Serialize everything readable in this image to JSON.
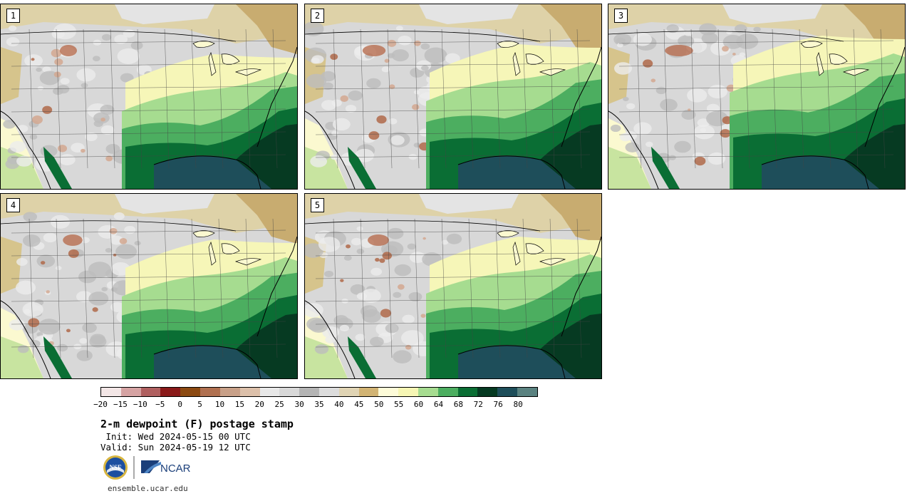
{
  "panels": [
    {
      "label": "1",
      "humid_north": 0
    },
    {
      "label": "2",
      "humid_north": 14
    },
    {
      "label": "3",
      "humid_north": 26
    },
    {
      "label": "4",
      "humid_north": 6
    },
    {
      "label": "5",
      "humid_north": 10
    }
  ],
  "colorbar": {
    "colors": [
      "#f3e6e6",
      "#d6a3a3",
      "#b06060",
      "#8a1a1a",
      "#8c4a12",
      "#b07050",
      "#c8a088",
      "#dcc0aa",
      "#e8e8e8",
      "#d8d8d8",
      "#b4b4b4",
      "#dcdcdc",
      "#e0d4b4",
      "#d2b474",
      "#fdfbd8",
      "#f6f6b4",
      "#a6dc90",
      "#4cae60",
      "#0a6e34",
      "#063a22",
      "#1e4e5a",
      "#5a8280"
    ],
    "ticks": [
      "−20",
      "−15",
      "−10",
      "−5",
      "0",
      "5",
      "10",
      "15",
      "20",
      "25",
      "30",
      "35",
      "40",
      "45",
      "50",
      "55",
      "60",
      "64",
      "68",
      "72",
      "76",
      "80"
    ]
  },
  "title": "2-m dewpoint (F) postage stamp",
  "init": " Init: Wed 2024-05-15 00 UTC",
  "valid": "Valid: Sun 2024-05-19 12 UTC",
  "logos": {
    "nsf": "NSF",
    "ncar": "NCAR"
  },
  "site": "ensemble.ucar.edu"
}
